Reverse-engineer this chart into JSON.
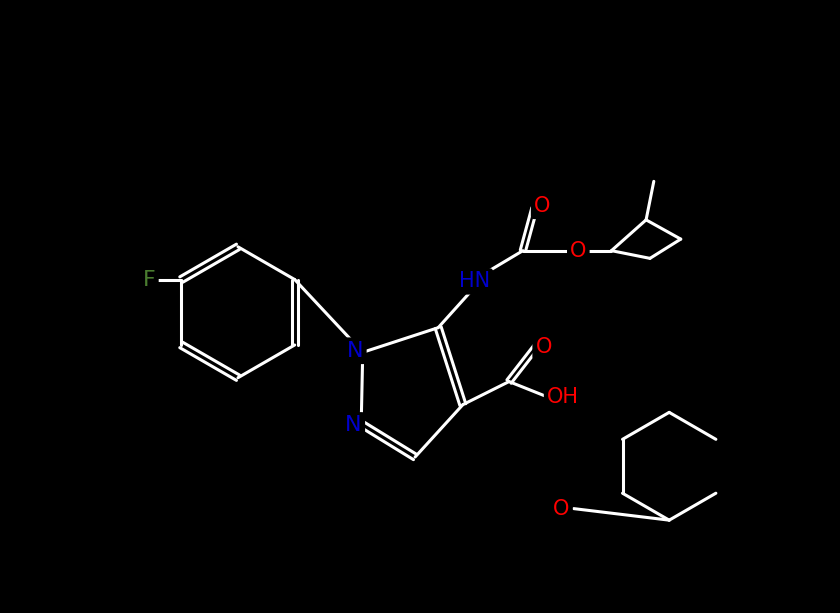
{
  "background_color": "#000000",
  "bond_color": "#ffffff",
  "atom_colors": {
    "F": "#4a7c2f",
    "N": "#0000cd",
    "O": "#ff0000",
    "H": "#ffffff",
    "C": "#ffffff"
  },
  "figsize": [
    8.4,
    6.13
  ],
  "dpi": 100
}
